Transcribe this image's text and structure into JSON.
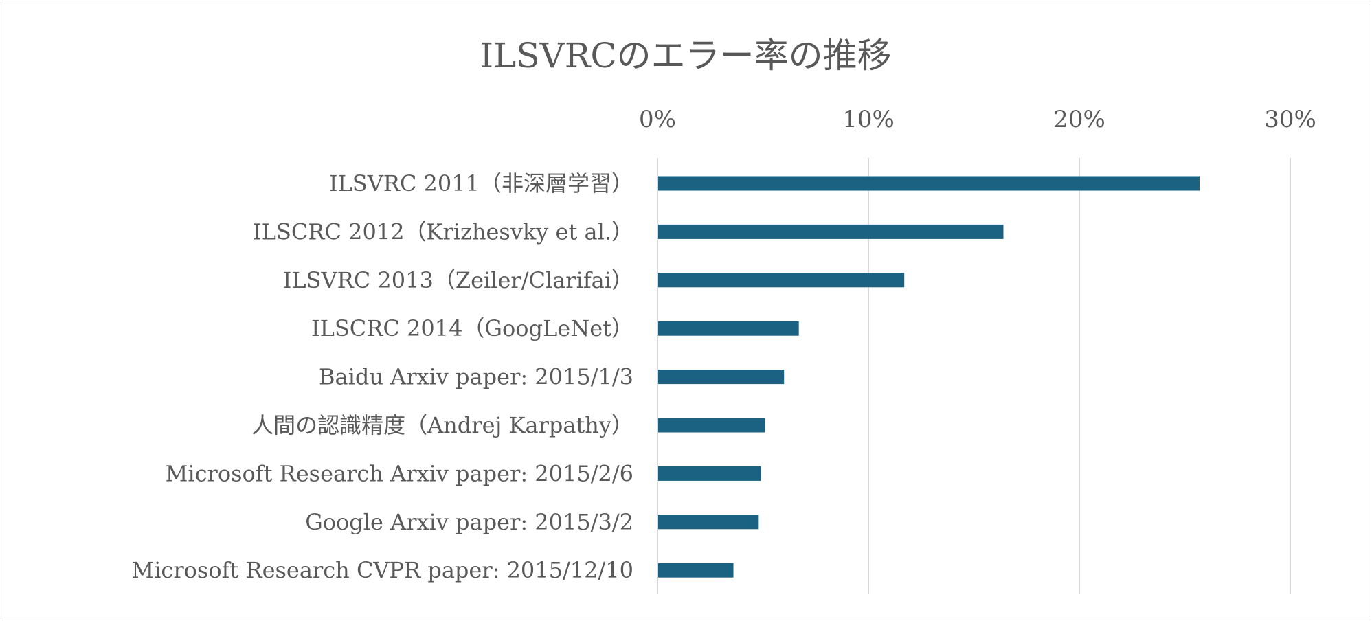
{
  "chart_data": {
    "type": "bar",
    "orientation": "horizontal",
    "title": "ILSVRCのエラー率の推移",
    "xlabel": "",
    "ylabel": "",
    "xlim": [
      0,
      0.3
    ],
    "xticks": [
      0,
      0.1,
      0.2,
      0.3
    ],
    "xtick_labels": [
      "0%",
      "10%",
      "20%",
      "30%"
    ],
    "x_axis_position": "top",
    "grid": true,
    "legend": "none",
    "bar_color": "#1b6282",
    "categories": [
      "ILSVRC 2011（非深層学習）",
      "ILSCRC 2012（Krizhesvky et al.）",
      "ILSVRC 2013（Zeiler/Clarifai）",
      "ILSCRC 2014（GoogLeNet）",
      "Baidu Arxiv paper: 2015/1/3",
      "人間の認識精度（Andrej Karpathy）",
      "Microsoft Research Arxiv paper: 2015/2/6",
      "Google Arxiv paper: 2015/3/2",
      "Microsoft Research CVPR paper: 2015/12/10"
    ],
    "values": [
      0.257,
      0.164,
      0.117,
      0.067,
      0.06,
      0.051,
      0.049,
      0.048,
      0.036
    ]
  }
}
